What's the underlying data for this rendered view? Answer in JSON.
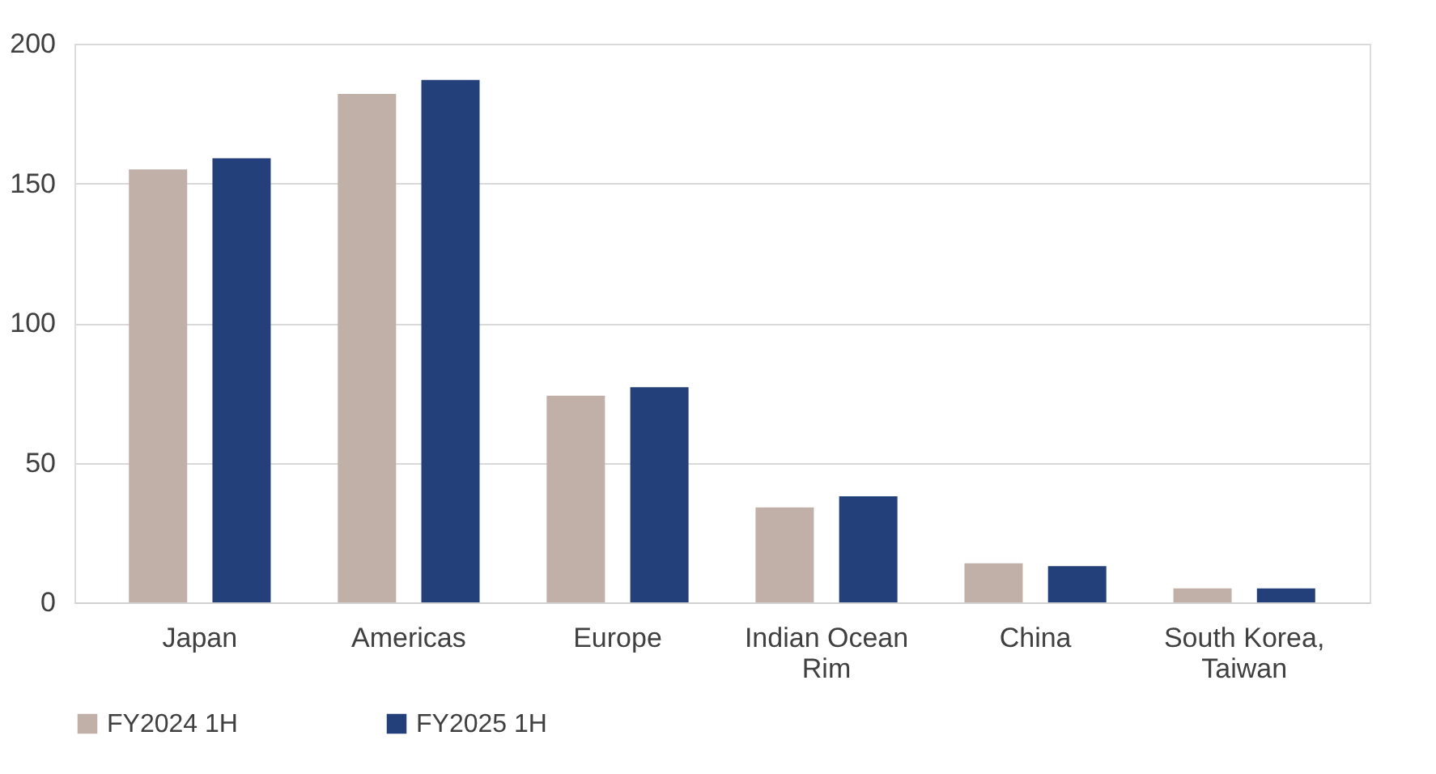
{
  "chart_data": {
    "type": "bar",
    "categories": [
      "Japan",
      "Americas",
      "Europe",
      "Indian Ocean Rim",
      "China",
      "South Korea, Taiwan"
    ],
    "series": [
      {
        "name": "FY2024 1H",
        "color": "#c0b0a8",
        "values": [
          155,
          182,
          74,
          34,
          14,
          5
        ]
      },
      {
        "name": "FY2025 1H",
        "color": "#24407a",
        "values": [
          159,
          187,
          77,
          38,
          13,
          5
        ]
      }
    ],
    "ylim": [
      0,
      200
    ],
    "yticks": [
      0,
      50,
      100,
      150,
      200
    ],
    "grid": "y",
    "legend": "bottom"
  }
}
